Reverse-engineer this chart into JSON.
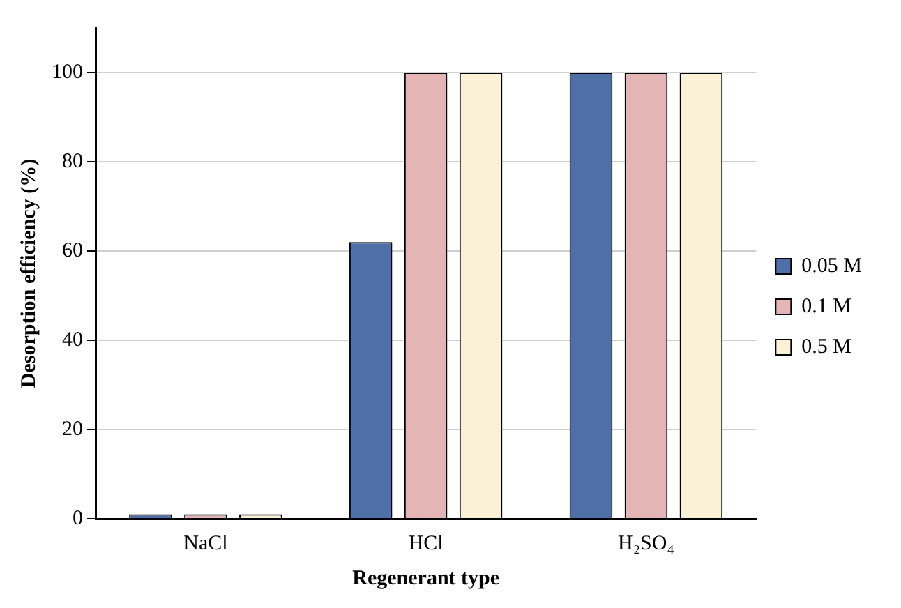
{
  "chart_data": {
    "type": "bar",
    "xlabel": "Regenerant type",
    "ylabel": "Desorption efficiency (%)",
    "categories": [
      "NaCl",
      "HCl",
      "H₂SO₄"
    ],
    "series": [
      {
        "name": "0.05 M",
        "color": "#4f6fa8",
        "values": [
          1,
          62,
          100
        ]
      },
      {
        "name": "0.1 M",
        "color": "#e3b5b5",
        "values": [
          1,
          100,
          100
        ]
      },
      {
        "name": "0.5 M",
        "color": "#fbf1d6",
        "values": [
          1,
          100,
          100
        ]
      }
    ],
    "ylim": [
      0,
      110
    ],
    "yticks": [
      0,
      20,
      40,
      60,
      80,
      100
    ],
    "grid": "y",
    "legend": "right"
  }
}
